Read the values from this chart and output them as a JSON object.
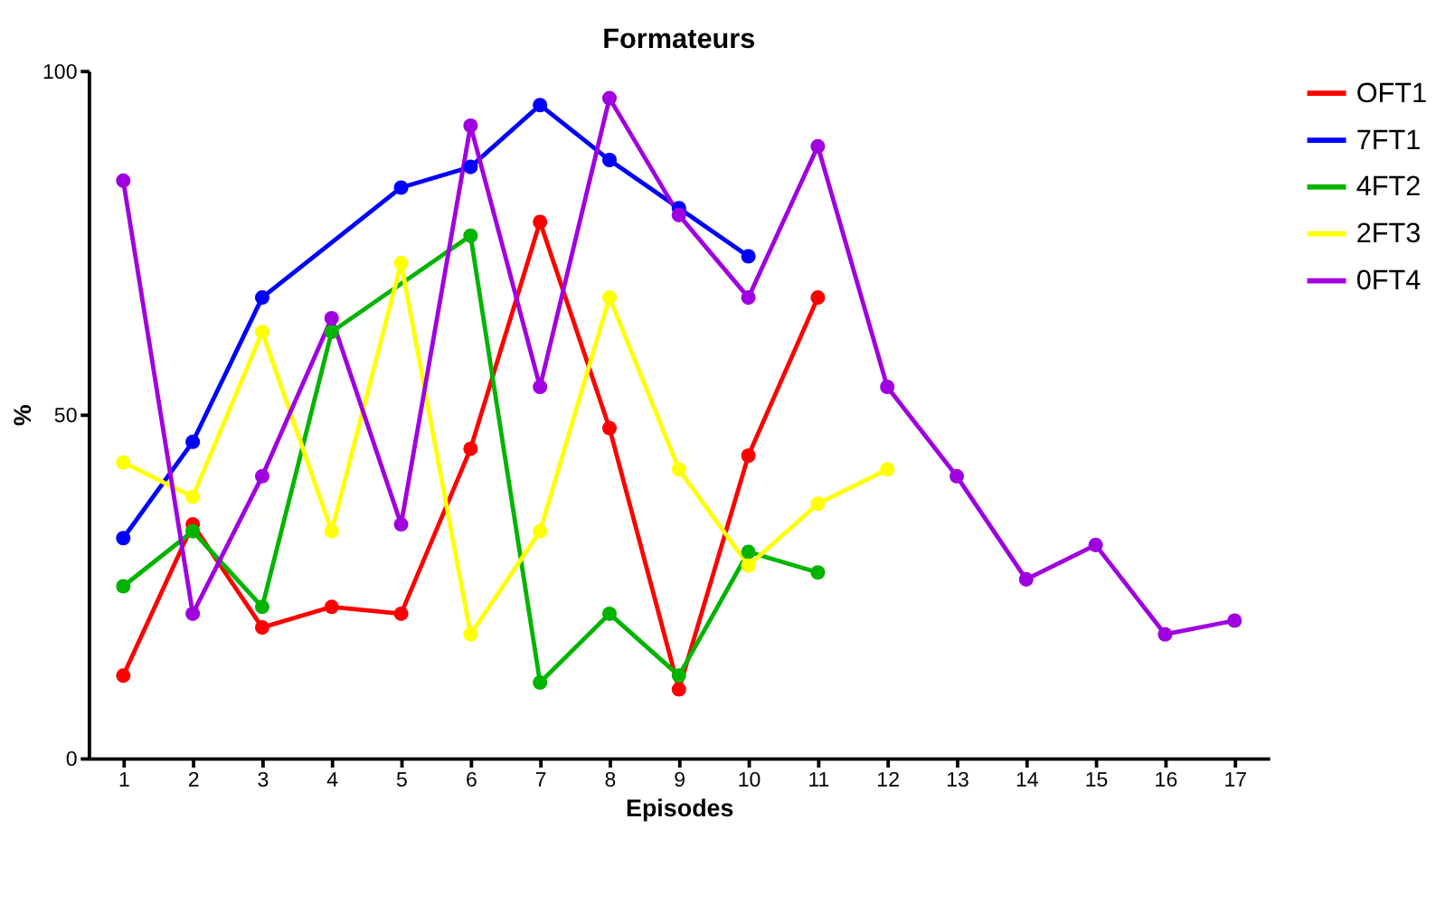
{
  "chart_data": {
    "type": "line",
    "title": "Formateurs",
    "xlabel": "Episodes",
    "ylabel": "%",
    "xlim": [
      0.5,
      17.5
    ],
    "xticks": [
      1,
      2,
      3,
      4,
      5,
      6,
      7,
      8,
      9,
      10,
      11,
      12,
      13,
      14,
      15,
      16,
      17
    ],
    "ylim": [
      0,
      100
    ],
    "yticks": [
      0,
      50,
      100
    ],
    "grid": false,
    "legend": "right",
    "marker": "circle",
    "line_style": "solid",
    "series": [
      {
        "name": "OFT1",
        "color": "#ff0000",
        "x": [
          1,
          2,
          3,
          4,
          5,
          6,
          7,
          8,
          9,
          10,
          11
        ],
        "values": [
          12,
          34,
          19,
          22,
          21,
          45,
          78,
          48,
          10,
          44,
          67
        ]
      },
      {
        "name": "7FT1",
        "color": "#0000ff",
        "x": [
          1,
          2,
          3,
          5,
          6,
          7,
          8,
          9,
          10
        ],
        "values": [
          32,
          46,
          67,
          83,
          86,
          95,
          87,
          80,
          73
        ]
      },
      {
        "name": "4FT2",
        "color": "#00b400",
        "x": [
          1,
          2,
          3,
          4,
          6,
          7,
          8,
          9,
          10,
          11
        ],
        "values": [
          25,
          33,
          22,
          62,
          76,
          11,
          21,
          12,
          30,
          27
        ]
      },
      {
        "name": "2FT3",
        "color": "#ffff00",
        "x": [
          1,
          2,
          3,
          4,
          5,
          6,
          7,
          8,
          9,
          10,
          11,
          12
        ],
        "values": [
          43,
          38,
          62,
          33,
          72,
          18,
          33,
          67,
          42,
          28,
          37,
          42
        ]
      },
      {
        "name": "0FT4",
        "color": "#a000e0",
        "x": [
          1,
          2,
          3,
          4,
          5,
          6,
          7,
          8,
          9,
          10,
          11,
          12,
          13,
          14,
          15,
          16,
          17
        ],
        "values": [
          84,
          21,
          41,
          64,
          34,
          92,
          54,
          96,
          79,
          67,
          89,
          54,
          41,
          26,
          31,
          18,
          20
        ]
      }
    ]
  }
}
